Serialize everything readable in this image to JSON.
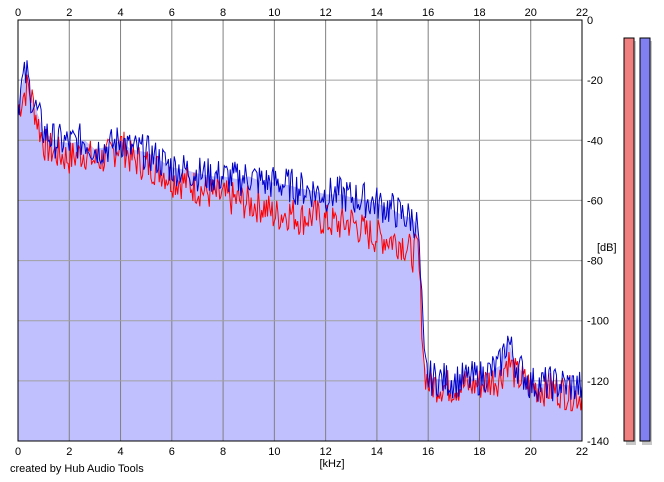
{
  "chart_data": {
    "type": "area",
    "xlabel": "[kHz]",
    "ylabel": "[dB]",
    "xlim": [
      0,
      22
    ],
    "ylim": [
      -140,
      0
    ],
    "x_ticks": [
      "0",
      "2",
      "4",
      "6",
      "8",
      "10",
      "12",
      "14",
      "16",
      "18",
      "20",
      "22"
    ],
    "y_ticks": [
      "0",
      "-20",
      "-40",
      "-60",
      "-80",
      "-100",
      "-120",
      "-140"
    ],
    "grid": true,
    "series": [
      {
        "color": "#ff0000",
        "points": [
          [
            0,
            -30
          ],
          [
            0.2,
            -25
          ],
          [
            0.4,
            -22
          ],
          [
            0.6,
            -28
          ],
          [
            0.8,
            -35
          ],
          [
            1.0,
            -41
          ],
          [
            1.4,
            -44
          ],
          [
            2.0,
            -46
          ],
          [
            2.6,
            -44
          ],
          [
            3.0,
            -47
          ],
          [
            3.6,
            -45
          ],
          [
            4.0,
            -41
          ],
          [
            4.4,
            -46
          ],
          [
            5.0,
            -48
          ],
          [
            5.6,
            -50
          ],
          [
            6.0,
            -53
          ],
          [
            6.6,
            -54
          ],
          [
            7.0,
            -56
          ],
          [
            7.6,
            -58
          ],
          [
            8.0,
            -59
          ],
          [
            8.6,
            -60
          ],
          [
            9.0,
            -61
          ],
          [
            9.6,
            -62
          ],
          [
            10.0,
            -65
          ],
          [
            10.6,
            -64
          ],
          [
            11.0,
            -66
          ],
          [
            11.6,
            -65
          ],
          [
            12.0,
            -67
          ],
          [
            12.6,
            -68
          ],
          [
            13.0,
            -67
          ],
          [
            13.6,
            -71
          ],
          [
            14.0,
            -72
          ],
          [
            14.6,
            -73
          ],
          [
            15.0,
            -74
          ],
          [
            15.4,
            -78
          ],
          [
            15.6,
            -76
          ],
          [
            15.75,
            -100
          ],
          [
            15.85,
            -116
          ],
          [
            16.0,
            -121
          ],
          [
            17.0,
            -122
          ],
          [
            18.0,
            -121
          ],
          [
            18.8,
            -119
          ],
          [
            19.1,
            -113
          ],
          [
            19.4,
            -118
          ],
          [
            20.0,
            -122
          ],
          [
            21.0,
            -123
          ],
          [
            22.0,
            -125
          ]
        ]
      },
      {
        "color": "#0000cc",
        "points": [
          [
            0,
            -28
          ],
          [
            0.2,
            -20
          ],
          [
            0.35,
            -18
          ],
          [
            0.5,
            -25
          ],
          [
            0.8,
            -32
          ],
          [
            1.0,
            -37
          ],
          [
            1.4,
            -40
          ],
          [
            2.0,
            -41
          ],
          [
            2.6,
            -40
          ],
          [
            3.0,
            -43
          ],
          [
            3.6,
            -42
          ],
          [
            4.0,
            -40
          ],
          [
            4.4,
            -43
          ],
          [
            5.0,
            -44
          ],
          [
            5.6,
            -47
          ],
          [
            6.0,
            -49
          ],
          [
            6.6,
            -50
          ],
          [
            7.0,
            -51
          ],
          [
            7.6,
            -52
          ],
          [
            8.0,
            -52
          ],
          [
            8.6,
            -53
          ],
          [
            9.0,
            -52
          ],
          [
            9.6,
            -54
          ],
          [
            10.0,
            -54
          ],
          [
            10.6,
            -55
          ],
          [
            11.0,
            -56
          ],
          [
            11.6,
            -57
          ],
          [
            12.0,
            -58
          ],
          [
            12.6,
            -58
          ],
          [
            13.0,
            -59
          ],
          [
            13.6,
            -60
          ],
          [
            14.0,
            -61
          ],
          [
            14.6,
            -63
          ],
          [
            15.0,
            -65
          ],
          [
            15.4,
            -66
          ],
          [
            15.6,
            -69
          ],
          [
            15.75,
            -95
          ],
          [
            15.85,
            -114
          ],
          [
            16.0,
            -119
          ],
          [
            17.0,
            -120
          ],
          [
            18.0,
            -119
          ],
          [
            18.8,
            -115
          ],
          [
            19.1,
            -106
          ],
          [
            19.4,
            -114
          ],
          [
            20.0,
            -121
          ],
          [
            21.0,
            -121
          ],
          [
            22.0,
            -122
          ]
        ]
      }
    ],
    "fill_color": "#c0c0ff",
    "meters": [
      {
        "channel": "left",
        "color": "#f08080"
      },
      {
        "channel": "right",
        "color": "#8080f0"
      }
    ]
  },
  "footer": {
    "credit": "created by Hub Audio Tools"
  }
}
